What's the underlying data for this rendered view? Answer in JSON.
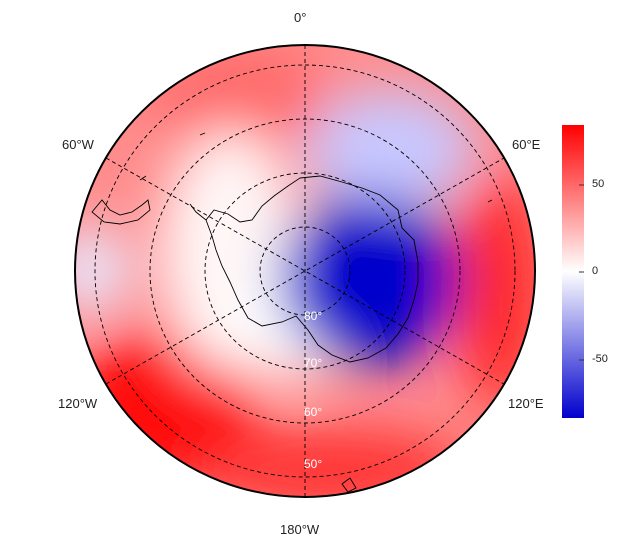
{
  "map": {
    "projection": "south-polar-stereographic",
    "longitude_labels": [
      "0°",
      "60°E",
      "120°E",
      "180°W",
      "120°W",
      "60°W"
    ],
    "latitude_labels": [
      "80°",
      "70°",
      "60°",
      "50°"
    ],
    "colors": {
      "positive": "#ff0000",
      "neutral": "#ffffff",
      "negative": "#0000cc"
    }
  },
  "colorbar": {
    "ticks": [
      "50",
      "0",
      "-50"
    ],
    "range": [
      -85,
      85
    ]
  }
}
